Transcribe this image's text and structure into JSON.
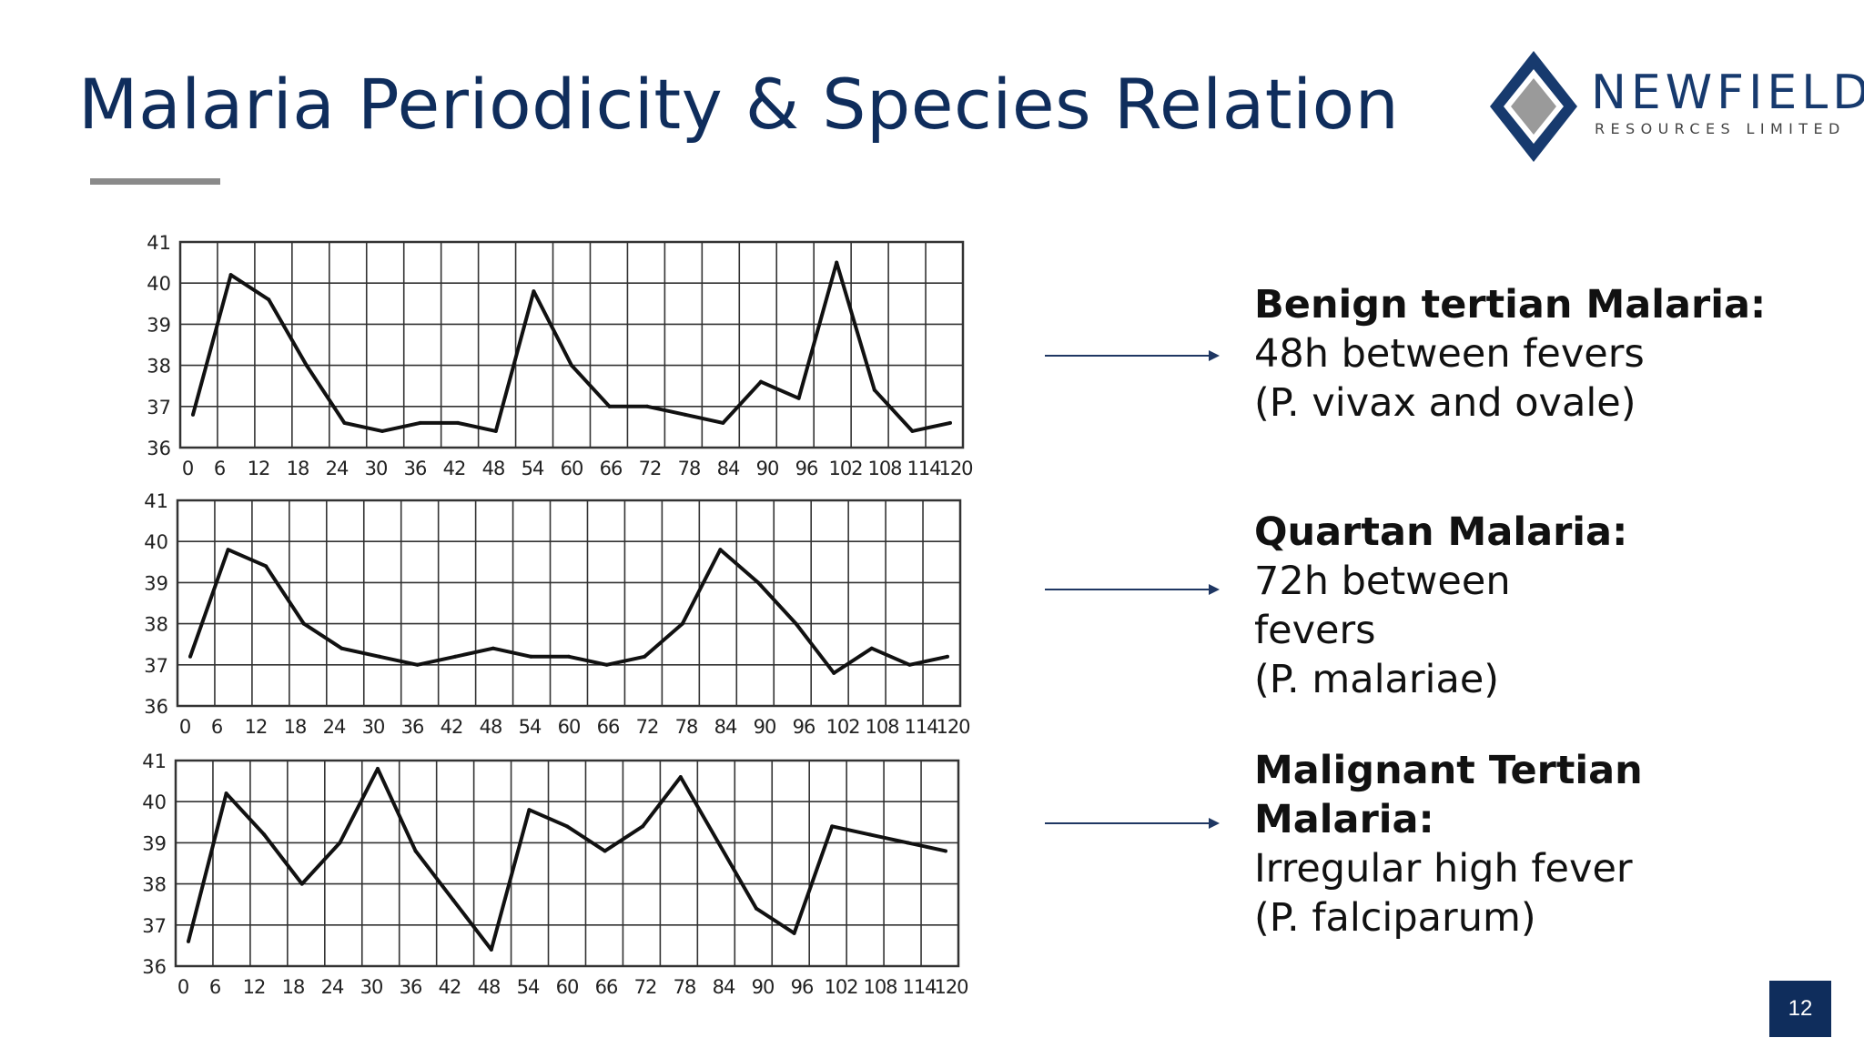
{
  "slide": {
    "title": "Malaria Periodicity & Species Relation",
    "page_number": "12"
  },
  "logo": {
    "name": "NEWFIELD",
    "subtitle": "RESOURCES LIMITED"
  },
  "colors": {
    "title": "#0f2d5c",
    "accent_rule": "#8a8a8a",
    "logo_navy": "#173a6e",
    "logo_gray": "#9a9a9a",
    "page_badge": "#0f2d5c",
    "grid": "#333333",
    "line": "#111111",
    "arrow": "#1f3763"
  },
  "notes": [
    {
      "head": "Benign tertian Malaria:",
      "lines": [
        "48h between fevers",
        "(P. vivax and ovale)"
      ]
    },
    {
      "head": "Quartan Malaria:",
      "lines": [
        "72h between",
        "fevers",
        "(P. malariae)"
      ]
    },
    {
      "head_lines": [
        "Malignant Tertian",
        "Malaria:"
      ],
      "lines": [
        "Irregular high fever",
        "(P. falciparum)"
      ]
    }
  ],
  "chart_data": [
    {
      "type": "line",
      "title": "Benign tertian Malaria",
      "x": [
        0,
        6,
        12,
        18,
        24,
        30,
        36,
        42,
        48,
        54,
        60,
        66,
        72,
        78,
        84,
        90,
        96,
        102,
        108,
        114,
        120
      ],
      "y": [
        36.8,
        40.2,
        39.6,
        38.0,
        36.6,
        36.4,
        36.6,
        36.6,
        36.4,
        39.8,
        38.0,
        37.0,
        37.0,
        36.8,
        36.6,
        37.6,
        37.2,
        40.5,
        37.4,
        36.4,
        36.6
      ],
      "xticks": [
        "0",
        "6",
        "12",
        "18",
        "24",
        "30",
        "36",
        "42",
        "48",
        "54",
        "60",
        "66",
        "72",
        "78",
        "84",
        "90",
        "96",
        "102",
        "108",
        "114",
        "120"
      ],
      "yticks": [
        "36",
        "37",
        "38",
        "39",
        "40",
        "41"
      ],
      "ylim": [
        36,
        41
      ],
      "xlim": [
        0,
        120
      ],
      "grid": true,
      "xlabel": "",
      "ylabel": ""
    },
    {
      "type": "line",
      "title": "Quartan Malaria",
      "x": [
        0,
        6,
        12,
        18,
        24,
        30,
        36,
        42,
        48,
        54,
        60,
        66,
        72,
        78,
        84,
        90,
        96,
        102,
        108,
        114,
        120
      ],
      "y": [
        37.2,
        39.8,
        39.4,
        38.0,
        37.4,
        37.2,
        37.0,
        37.2,
        37.4,
        37.2,
        37.2,
        37.0,
        37.2,
        38.0,
        39.8,
        39.0,
        38.0,
        36.8,
        37.4,
        37.0,
        37.2
      ],
      "xticks": [
        "0",
        "6",
        "12",
        "18",
        "24",
        "30",
        "36",
        "42",
        "48",
        "54",
        "60",
        "66",
        "72",
        "78",
        "84",
        "90",
        "96",
        "102",
        "108",
        "114",
        "120"
      ],
      "yticks": [
        "36",
        "37",
        "38",
        "39",
        "40",
        "41"
      ],
      "ylim": [
        36,
        41
      ],
      "xlim": [
        0,
        120
      ],
      "grid": true,
      "xlabel": "",
      "ylabel": ""
    },
    {
      "type": "line",
      "title": "Malignant Tertian Malaria",
      "x": [
        0,
        6,
        12,
        18,
        24,
        30,
        36,
        42,
        48,
        54,
        60,
        66,
        72,
        78,
        84,
        90,
        96,
        102,
        108,
        114,
        120
      ],
      "y": [
        36.6,
        40.2,
        39.2,
        38.0,
        39.0,
        40.8,
        38.8,
        37.6,
        36.4,
        39.8,
        39.4,
        38.8,
        39.4,
        40.6,
        39.0,
        37.4,
        36.8,
        39.4,
        39.2,
        39.0,
        38.8
      ],
      "xticks": [
        "0",
        "6",
        "12",
        "18",
        "24",
        "30",
        "36",
        "42",
        "48",
        "54",
        "60",
        "66",
        "72",
        "78",
        "84",
        "90",
        "96",
        "102",
        "108",
        "114",
        "120"
      ],
      "yticks": [
        "36",
        "37",
        "38",
        "39",
        "40",
        "41"
      ],
      "ylim": [
        36,
        41
      ],
      "xlim": [
        0,
        120
      ],
      "grid": true,
      "xlabel": "",
      "ylabel": ""
    }
  ]
}
